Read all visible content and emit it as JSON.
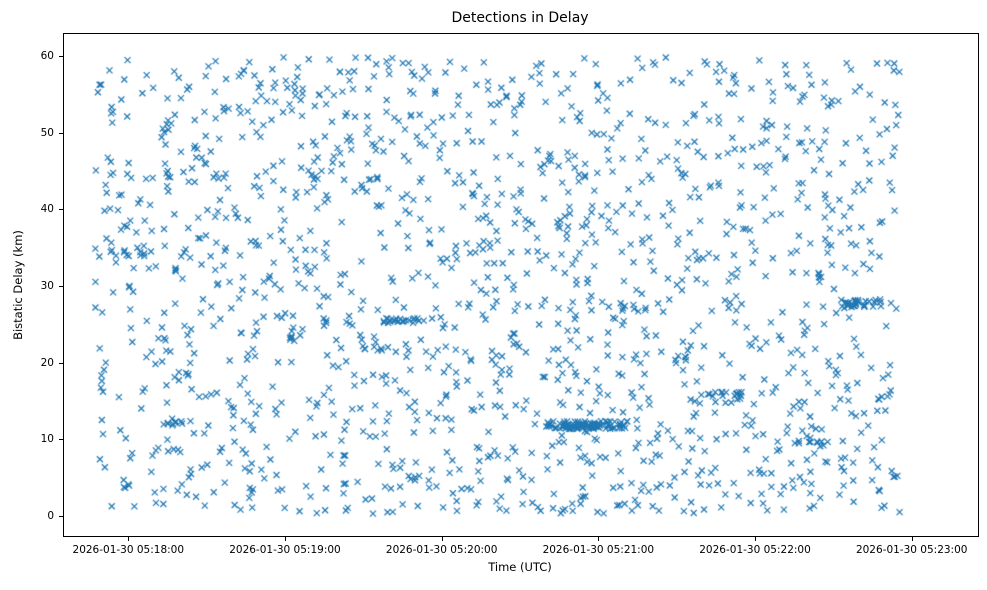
{
  "figure": {
    "title": "Detections in Delay",
    "xlabel": "Time (UTC)",
    "ylabel": "Bistatic Delay (km)"
  },
  "chart_data": {
    "type": "scatter",
    "title": "Detections in Delay",
    "xlabel": "Time (UTC)",
    "ylabel": "Bistatic Delay (km)",
    "marker": "x",
    "marker_color": "#1f77b4",
    "marker_size": 6,
    "grid": false,
    "legend": null,
    "x_tick_labels": [
      "2026-01-30 05:18:00",
      "2026-01-30 05:19:00",
      "2026-01-30 05:20:00",
      "2026-01-30 05:21:00",
      "2026-01-30 05:22:00",
      "2026-01-30 05:23:00"
    ],
    "x_tick_seconds": [
      0,
      60,
      120,
      180,
      240,
      300
    ],
    "x_reference_time": "2026-01-30 05:18:00",
    "y_ticks": [
      0,
      10,
      20,
      30,
      40,
      50,
      60
    ],
    "xlim_seconds": [
      -25,
      325
    ],
    "ylim": [
      -2.5,
      63
    ],
    "description": "Dense, roughly uniform random scatter of radar detections: bistatic delay 0-60 km over time 2026-01-30 05:17:47 to 05:22:53 UTC, with a few dense horizontal track-like clusters (notably delay ~12 km near 05:20:45-05:21:10, ~25.6 km near 05:19:37-05:19:52, ~27.8 km near 05:22:32-05:22:52, ~16 km near 05:21:38-05:21:55).",
    "background": {
      "n": 1600,
      "t_range_seconds": [
        -13,
        295
      ],
      "y_range": [
        0.4,
        60
      ],
      "seed": 12345
    },
    "clusters": [
      {
        "t_range_seconds": [
          160,
          192
        ],
        "y": 12.0,
        "y_jitter": 0.5,
        "n": 55
      },
      {
        "t_range_seconds": [
          166,
          180
        ],
        "y": 11.8,
        "y_jitter": 0.35,
        "n": 45
      },
      {
        "t_range_seconds": [
          97,
          113
        ],
        "y": 25.6,
        "y_jitter": 0.3,
        "n": 24
      },
      {
        "t_range_seconds": [
          272,
          292
        ],
        "y": 27.8,
        "y_jitter": 0.6,
        "n": 26
      },
      {
        "t_range_seconds": [
          218,
          235
        ],
        "y": 16.0,
        "y_jitter": 0.3,
        "n": 14
      },
      {
        "t_range_seconds": [
          10,
          24
        ],
        "y": 12.2,
        "y_jitter": 0.3,
        "n": 10
      },
      {
        "t_range_seconds": [
          88,
          100
        ],
        "y": 22.0,
        "y_jitter": 0.3,
        "n": 8
      },
      {
        "t_range_seconds": [
          255,
          268
        ],
        "y": 9.6,
        "y_jitter": 0.3,
        "n": 8
      }
    ]
  }
}
